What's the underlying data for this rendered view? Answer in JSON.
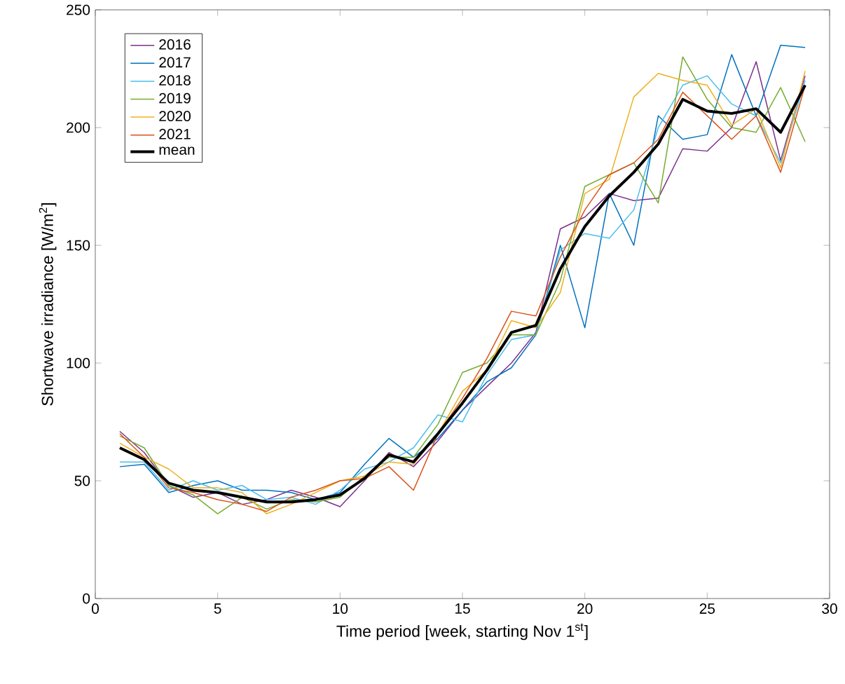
{
  "chart_data": {
    "type": "line",
    "xlabel": "Time period [week, starting Nov 1$^{st}$]",
    "ylabel": "Shortwave irradiance [W/m$^{2}$]",
    "x": [
      1,
      2,
      3,
      4,
      5,
      6,
      7,
      8,
      9,
      10,
      11,
      12,
      13,
      14,
      15,
      16,
      17,
      18,
      19,
      20,
      21,
      22,
      23,
      24,
      25,
      26,
      27,
      28,
      29
    ],
    "xlim": [
      0,
      30
    ],
    "ylim": [
      0,
      250
    ],
    "xticks": [
      0,
      5,
      10,
      15,
      20,
      25,
      30
    ],
    "yticks": [
      0,
      50,
      100,
      150,
      200,
      250
    ],
    "legend": "top left",
    "grid": false,
    "marker": "none",
    "line_style": "solid",
    "series": [
      {
        "name": "2016",
        "color": "#7e2f8e",
        "values": [
          71,
          62,
          48,
          43,
          45,
          40,
          42,
          46,
          43,
          39,
          50,
          62,
          56,
          67,
          80,
          90,
          100,
          113,
          157,
          162,
          172,
          169,
          170,
          191,
          190,
          200,
          228,
          186,
          222
        ]
      },
      {
        "name": "2017",
        "color": "#0072bd",
        "values": [
          56,
          57,
          45,
          48,
          50,
          46,
          46,
          45,
          42,
          45,
          57,
          68,
          60,
          68,
          80,
          92,
          98,
          112,
          150,
          115,
          172,
          150,
          205,
          195,
          197,
          231,
          205,
          235,
          234
        ]
      },
      {
        "name": "2018",
        "color": "#4dbeee",
        "values": [
          58,
          58,
          46,
          50,
          46,
          48,
          42,
          43,
          40,
          46,
          55,
          58,
          64,
          78,
          75,
          95,
          110,
          112,
          148,
          155,
          153,
          165,
          200,
          218,
          222,
          210,
          205,
          185,
          220
        ]
      },
      {
        "name": "2019",
        "color": "#77ac30",
        "values": [
          69,
          64,
          48,
          44,
          36,
          43,
          38,
          42,
          41,
          43,
          52,
          60,
          60,
          74,
          96,
          100,
          112,
          112,
          135,
          175,
          180,
          185,
          168,
          230,
          212,
          200,
          198,
          217,
          194
        ]
      },
      {
        "name": "2020",
        "color": "#edb120",
        "values": [
          66,
          60,
          55,
          47,
          47,
          45,
          36,
          40,
          45,
          50,
          52,
          58,
          57,
          70,
          88,
          97,
          118,
          115,
          130,
          172,
          178,
          213,
          223,
          220,
          218,
          201,
          208,
          183,
          224
        ]
      },
      {
        "name": "2021",
        "color": "#d95319",
        "values": [
          70,
          60,
          47,
          45,
          42,
          40,
          37,
          43,
          46,
          50,
          51,
          56,
          46,
          70,
          85,
          102,
          122,
          120,
          145,
          165,
          180,
          185,
          195,
          215,
          205,
          195,
          205,
          181,
          218
        ]
      },
      {
        "name": "mean",
        "color": "#000000",
        "values": [
          64,
          59,
          49,
          46,
          45,
          43,
          41,
          41,
          42,
          44,
          51,
          61,
          58,
          70,
          83,
          97,
          113,
          116,
          140,
          158,
          171,
          181,
          193,
          212,
          207,
          206,
          208,
          198,
          218
        ]
      }
    ]
  }
}
